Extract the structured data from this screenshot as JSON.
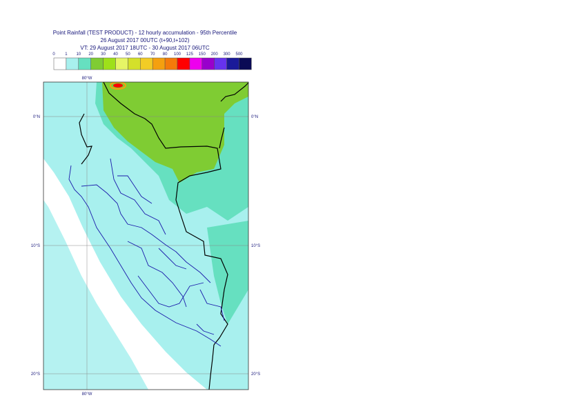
{
  "title": {
    "line1": "Point Rainfall (TEST PRODUCT) - 12 hourly accumulation - 95th Percentile",
    "line2": "26 August 2017 00UTC (t+90,t+102)",
    "line3": "VT: 29 August 2017 18UTC - 30 August 2017 06UTC"
  },
  "legend": {
    "thresholds": [
      "0",
      "1",
      "10",
      "20",
      "30",
      "40",
      "50",
      "60",
      "70",
      "80",
      "100",
      "125",
      "150",
      "200",
      "300",
      "500"
    ],
    "colors": [
      "#ffffff",
      "#a8f0ee",
      "#66e0c0",
      "#7fcc33",
      "#9ee01a",
      "#e6f566",
      "#d4e02a",
      "#f2cc26",
      "#f5a00f",
      "#f57a0a",
      "#ff0000",
      "#ee00ee",
      "#9900cc",
      "#6633ee",
      "#1a1a99",
      "#0a0a55"
    ]
  },
  "map": {
    "lon_labels": {
      "top": "80°W",
      "bottom": "80°W"
    },
    "lat_labels": [
      "0°N",
      "10°S",
      "20°S"
    ],
    "colors": {
      "ocean_light": "#a8f0ee",
      "land_mid": "#66e0c0",
      "high": "#7fcc33",
      "peak": "#ff0000",
      "border": "#000000",
      "admin": "#1a1aaa",
      "grid": "#888888"
    }
  }
}
